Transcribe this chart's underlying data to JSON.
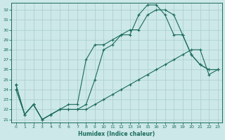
{
  "title": "",
  "xlabel": "Humidex (Indice chaleur)",
  "background_color": "#cce8e8",
  "grid_color": "#aacccc",
  "line_color": "#1a6b5a",
  "xlim": [
    -0.5,
    23.5
  ],
  "ylim": [
    20.7,
    32.7
  ],
  "yticks": [
    21,
    22,
    23,
    24,
    25,
    26,
    27,
    28,
    29,
    30,
    31,
    32
  ],
  "xticks": [
    0,
    1,
    2,
    3,
    4,
    5,
    6,
    7,
    8,
    9,
    10,
    11,
    12,
    13,
    14,
    15,
    16,
    17,
    18,
    19,
    20,
    21,
    22,
    23
  ],
  "series": [
    [
      24.5,
      21.5,
      22.5,
      21.0,
      21.5,
      22.0,
      22.5,
      22.5,
      27.0,
      28.5,
      28.5,
      29.0,
      29.5,
      29.5,
      31.5,
      32.5,
      32.5,
      31.5,
      29.5,
      29.5,
      27.5,
      26.5,
      26.0,
      26.0
    ],
    [
      24.5,
      21.5,
      22.5,
      21.0,
      21.5,
      22.0,
      22.0,
      22.0,
      22.5,
      25.0,
      28.0,
      28.5,
      29.5,
      30.0,
      30.0,
      31.5,
      32.0,
      32.0,
      31.5,
      29.5,
      27.5,
      26.5,
      26.0,
      26.0
    ],
    [
      24.0,
      21.5,
      22.5,
      21.0,
      21.5,
      22.0,
      22.0,
      22.0,
      22.0,
      22.5,
      23.0,
      23.5,
      24.0,
      24.5,
      25.0,
      25.5,
      26.0,
      26.5,
      27.0,
      27.5,
      28.0,
      28.0,
      25.5,
      26.0
    ]
  ]
}
